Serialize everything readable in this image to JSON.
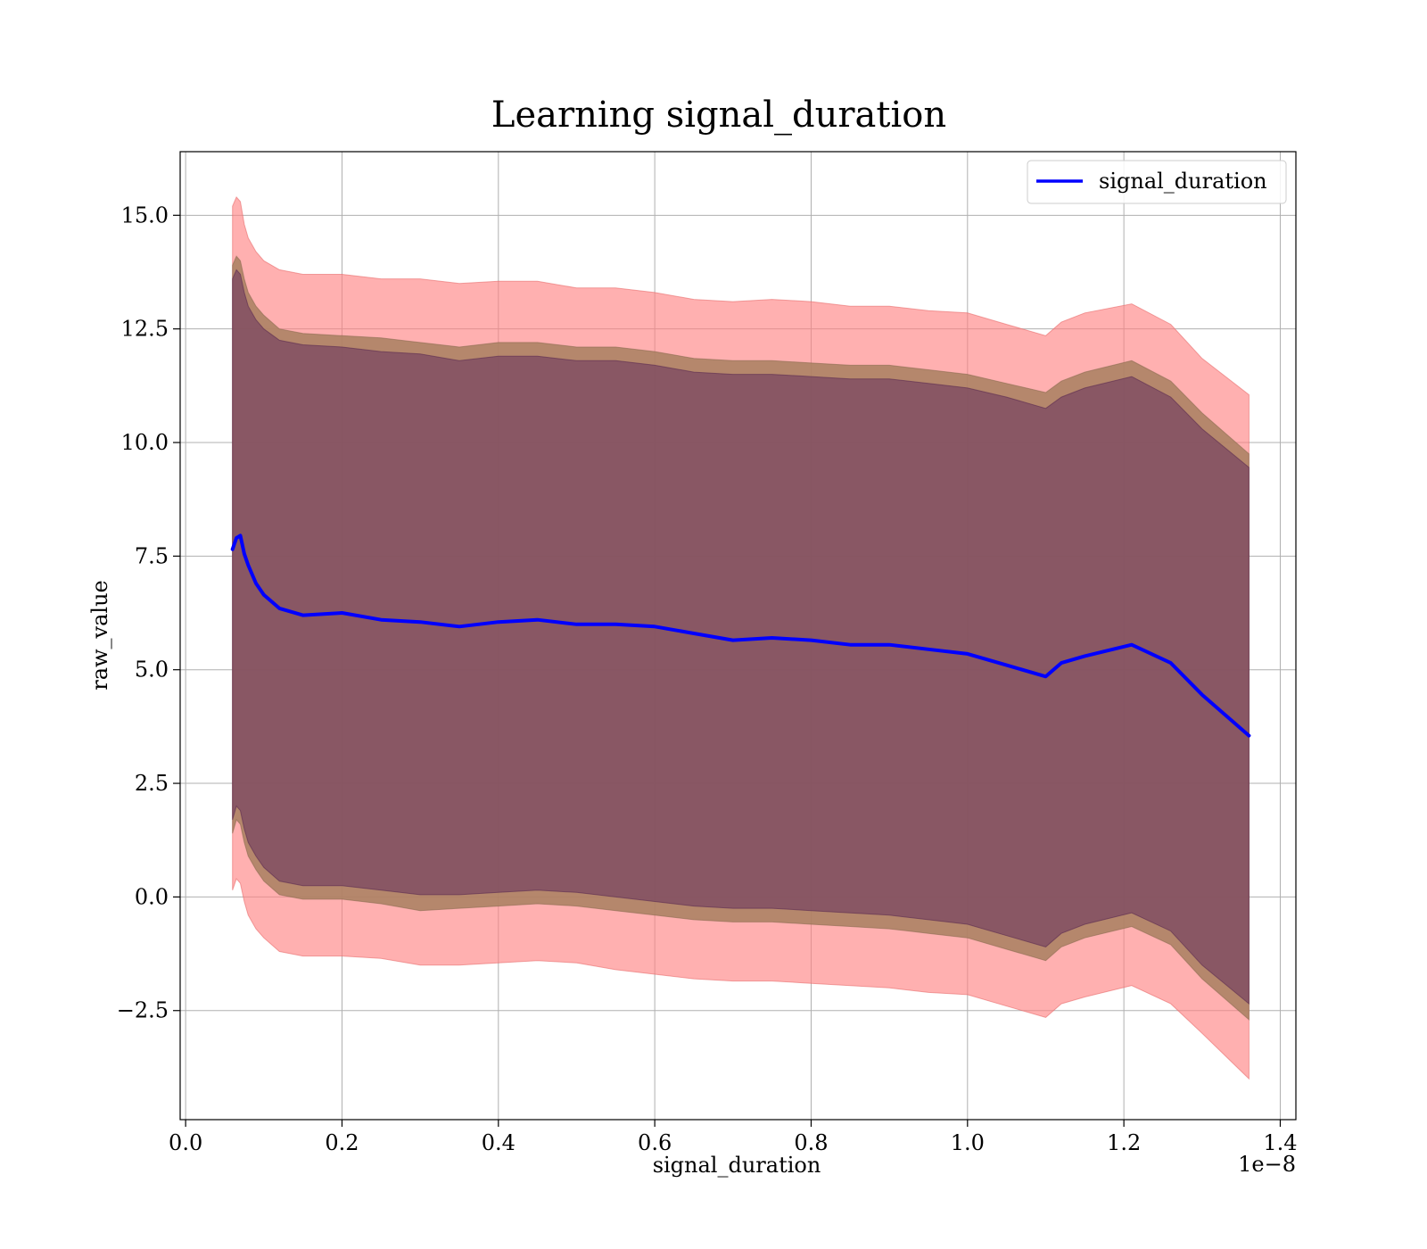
{
  "chart_data": {
    "type": "line",
    "title": "Learning signal_duration",
    "xlabel": "signal_duration",
    "ylabel": "raw_value",
    "x_offset_label": "1e−8",
    "xlim": [
      -0.007,
      1.42
    ],
    "ylim": [
      -4.9,
      16.4
    ],
    "xticks": [
      0.0,
      0.2,
      0.4,
      0.6,
      0.8,
      1.0,
      1.2,
      1.4
    ],
    "xtick_labels": [
      "0.0",
      "0.2",
      "0.4",
      "0.6",
      "0.8",
      "1.0",
      "1.2",
      "1.4"
    ],
    "yticks": [
      -2.5,
      0.0,
      2.5,
      5.0,
      7.5,
      10.0,
      12.5,
      15.0
    ],
    "ytick_labels": [
      "−2.5",
      "0.0",
      "2.5",
      "5.0",
      "7.5",
      "10.0",
      "12.5",
      "15.0"
    ],
    "grid": true,
    "legend_position": "top-right",
    "colors": {
      "line": "#0000ff",
      "outer_band": "#ff8080",
      "middle_band": "#a88060",
      "inner_band": "#6e3a60",
      "grid": "#b0b0b0"
    },
    "x": [
      0.06,
      0.065,
      0.07,
      0.075,
      0.08,
      0.09,
      0.1,
      0.12,
      0.15,
      0.2,
      0.25,
      0.3,
      0.35,
      0.4,
      0.45,
      0.5,
      0.55,
      0.6,
      0.65,
      0.7,
      0.75,
      0.8,
      0.85,
      0.9,
      0.95,
      1.0,
      1.05,
      1.1,
      1.12,
      1.15,
      1.21,
      1.26,
      1.3,
      1.36
    ],
    "series": [
      {
        "name": "signal_duration",
        "values": [
          7.65,
          7.9,
          7.95,
          7.55,
          7.3,
          6.9,
          6.65,
          6.35,
          6.2,
          6.25,
          6.1,
          6.05,
          5.95,
          6.05,
          6.1,
          6.0,
          6.0,
          5.95,
          5.8,
          5.65,
          5.7,
          5.65,
          5.55,
          5.55,
          5.45,
          5.35,
          5.1,
          4.85,
          5.15,
          5.3,
          5.55,
          5.15,
          4.45,
          3.55
        ]
      }
    ],
    "bands": [
      {
        "level": "outer",
        "upper": [
          15.2,
          15.4,
          15.3,
          14.8,
          14.5,
          14.2,
          14.0,
          13.8,
          13.7,
          13.7,
          13.6,
          13.6,
          13.5,
          13.55,
          13.55,
          13.4,
          13.4,
          13.3,
          13.15,
          13.1,
          13.15,
          13.1,
          13.0,
          13.0,
          12.9,
          12.85,
          12.6,
          12.35,
          12.65,
          12.85,
          13.05,
          12.6,
          11.85,
          11.05
        ],
        "lower": [
          0.15,
          0.4,
          0.3,
          -0.1,
          -0.4,
          -0.7,
          -0.9,
          -1.2,
          -1.3,
          -1.3,
          -1.35,
          -1.5,
          -1.5,
          -1.45,
          -1.4,
          -1.45,
          -1.6,
          -1.7,
          -1.8,
          -1.85,
          -1.85,
          -1.9,
          -1.95,
          -2.0,
          -2.1,
          -2.15,
          -2.4,
          -2.65,
          -2.35,
          -2.2,
          -1.95,
          -2.35,
          -3.0,
          -4.0
        ]
      },
      {
        "level": "middle",
        "upper": [
          13.9,
          14.1,
          14.0,
          13.6,
          13.3,
          13.0,
          12.8,
          12.5,
          12.4,
          12.35,
          12.3,
          12.2,
          12.1,
          12.2,
          12.2,
          12.1,
          12.1,
          12.0,
          11.85,
          11.8,
          11.8,
          11.75,
          11.7,
          11.7,
          11.6,
          11.5,
          11.3,
          11.1,
          11.35,
          11.55,
          11.8,
          11.35,
          10.65,
          9.75
        ],
        "lower": [
          1.4,
          1.7,
          1.6,
          1.2,
          0.9,
          0.6,
          0.35,
          0.05,
          -0.05,
          -0.05,
          -0.15,
          -0.3,
          -0.25,
          -0.2,
          -0.15,
          -0.2,
          -0.3,
          -0.4,
          -0.5,
          -0.55,
          -0.55,
          -0.6,
          -0.65,
          -0.7,
          -0.8,
          -0.9,
          -1.15,
          -1.4,
          -1.1,
          -0.9,
          -0.65,
          -1.05,
          -1.8,
          -2.7
        ]
      },
      {
        "level": "inner",
        "upper": [
          13.6,
          13.8,
          13.7,
          13.3,
          13.0,
          12.7,
          12.5,
          12.25,
          12.15,
          12.1,
          12.0,
          11.95,
          11.8,
          11.9,
          11.9,
          11.8,
          11.8,
          11.7,
          11.55,
          11.5,
          11.5,
          11.45,
          11.4,
          11.4,
          11.3,
          11.2,
          11.0,
          10.75,
          11.0,
          11.2,
          11.45,
          11.0,
          10.3,
          9.45
        ],
        "lower": [
          1.7,
          2.0,
          1.9,
          1.5,
          1.2,
          0.9,
          0.65,
          0.35,
          0.25,
          0.25,
          0.15,
          0.05,
          0.05,
          0.1,
          0.15,
          0.1,
          0.0,
          -0.1,
          -0.2,
          -0.25,
          -0.25,
          -0.3,
          -0.35,
          -0.4,
          -0.5,
          -0.6,
          -0.85,
          -1.1,
          -0.8,
          -0.6,
          -0.35,
          -0.75,
          -1.5,
          -2.35
        ]
      }
    ]
  }
}
